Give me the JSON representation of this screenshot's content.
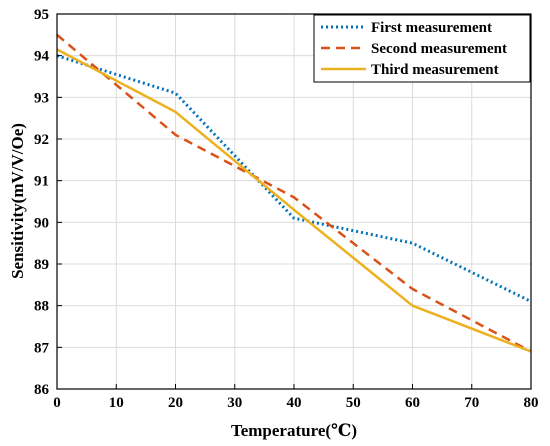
{
  "chart_data": {
    "type": "line",
    "xlabel": "Temperature(℃)",
    "ylabel": "Sensitivity(mV/V/Oe)",
    "xlim": [
      0,
      80
    ],
    "ylim": [
      86,
      95
    ],
    "xticks": [
      0,
      10,
      20,
      30,
      40,
      50,
      60,
      70,
      80
    ],
    "yticks": [
      86,
      87,
      88,
      89,
      90,
      91,
      92,
      93,
      94,
      95
    ],
    "grid": true,
    "legend_position": "top-right",
    "series": [
      {
        "name": "First measurement",
        "color": "#0072BD",
        "style": "dotted",
        "x": [
          0,
          20,
          40,
          60,
          80
        ],
        "y": [
          94.0,
          93.1,
          90.1,
          89.5,
          88.1
        ]
      },
      {
        "name": "Second measurement",
        "color": "#D95319",
        "style": "dashed",
        "x": [
          0,
          20,
          40,
          60,
          80
        ],
        "y": [
          94.5,
          92.1,
          90.6,
          88.4,
          86.9
        ]
      },
      {
        "name": "Third measurement",
        "color": "#EDB120",
        "style": "solid",
        "x": [
          0,
          20,
          40,
          60,
          80
        ],
        "y": [
          94.15,
          92.65,
          90.3,
          88.0,
          86.9
        ]
      }
    ]
  }
}
